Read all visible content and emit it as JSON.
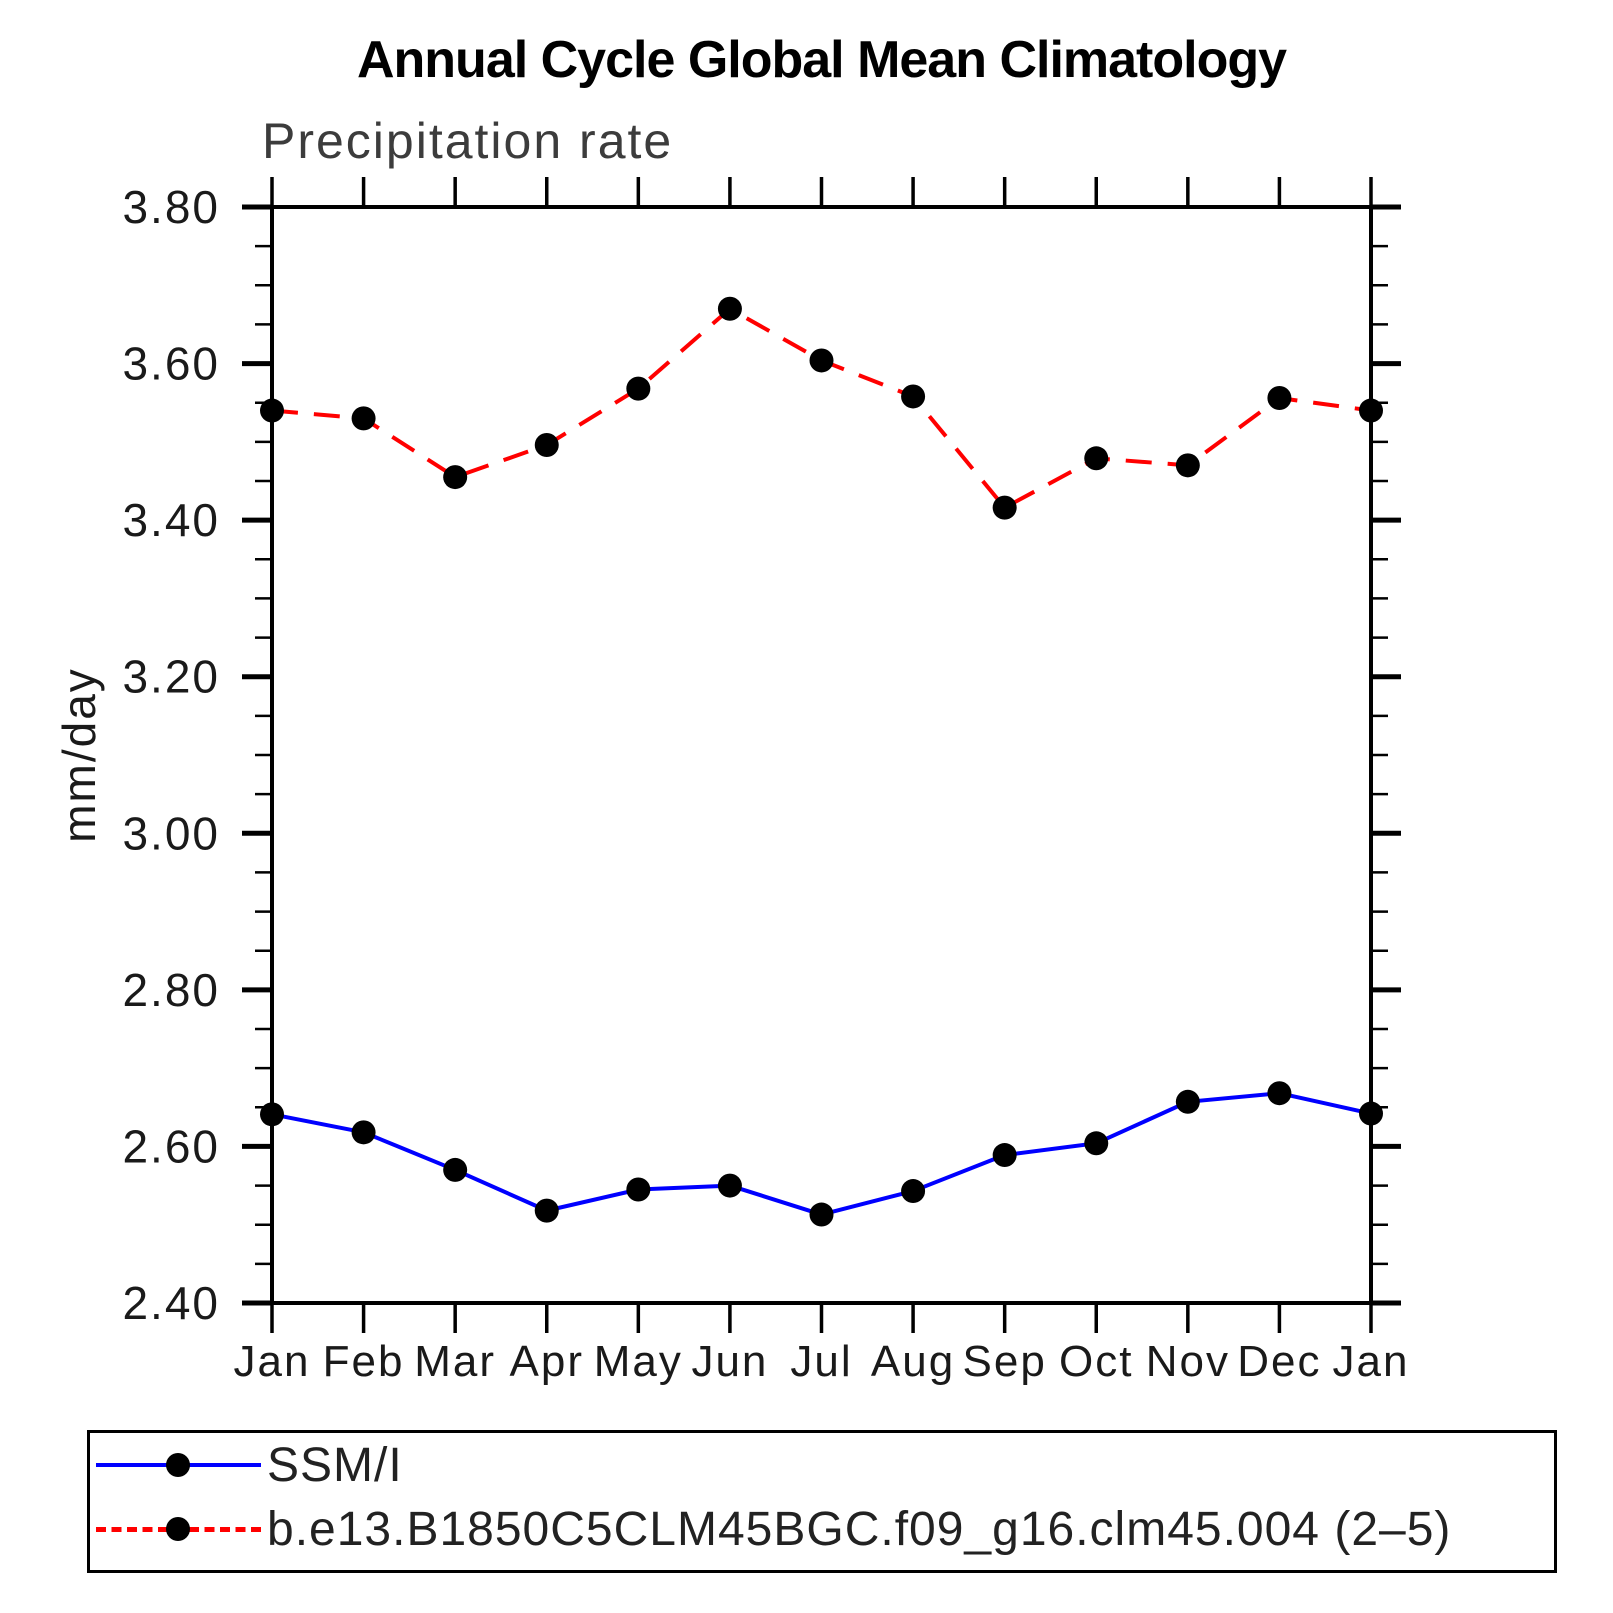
{
  "title": "Annual Cycle Global Mean Climatology",
  "subtitle": "Precipitation rate",
  "chart_data": {
    "type": "line",
    "title": "Annual Cycle Global Mean Climatology",
    "subtitle": "Precipitation rate",
    "ylabel": "mm/day",
    "categories": [
      "Jan",
      "Feb",
      "Mar",
      "Apr",
      "May",
      "Jun",
      "Jul",
      "Aug",
      "Sep",
      "Oct",
      "Nov",
      "Dec",
      "Jan"
    ],
    "ylim": [
      2.4,
      3.8
    ],
    "ytick_step": 0.2,
    "yminor_step": 0.05,
    "ytick_labels": [
      "3.80",
      "3.60",
      "3.40",
      "3.20",
      "3.00",
      "2.80",
      "2.60",
      "2.40"
    ],
    "grid": false,
    "legend_position": "bottom-left box",
    "series": [
      {
        "name": "SSM/I",
        "color": "#0000FF",
        "style": "solid",
        "marker": "filled-circle",
        "marker_color": "#000000",
        "values": [
          2.641,
          2.618,
          2.57,
          2.518,
          2.545,
          2.55,
          2.513,
          2.543,
          2.589,
          2.604,
          2.657,
          2.668,
          2.642
        ]
      },
      {
        "name": "b.e13.B1850C5CLM45BGC.f09_g16.clm45.004 (2–5)",
        "color": "#FF0000",
        "style": "dashed",
        "marker": "filled-circle",
        "marker_color": "#000000",
        "values": [
          3.54,
          3.53,
          3.455,
          3.496,
          3.568,
          3.67,
          3.604,
          3.558,
          3.416,
          3.479,
          3.47,
          3.556,
          3.54
        ]
      }
    ]
  }
}
